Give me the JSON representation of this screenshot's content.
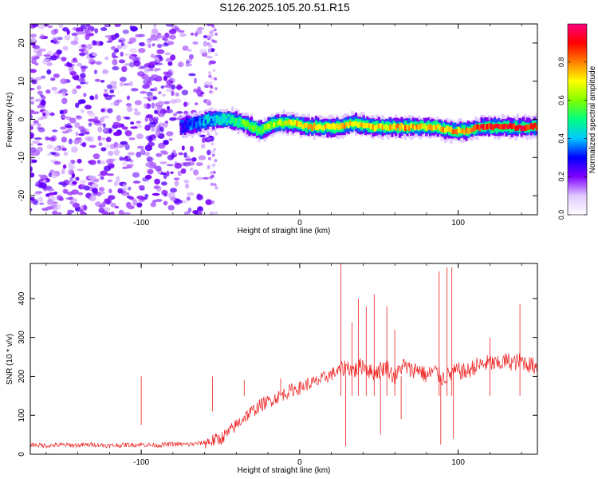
{
  "title": "S126.2025.105.20.51.R15",
  "chart_data": [
    {
      "type": "heatmap",
      "xlabel": "Height of straight line (km)",
      "ylabel": "Frequency (Hz)",
      "xlim": [
        -170,
        150
      ],
      "ylim": [
        -25,
        25
      ],
      "xticks": [
        -100,
        0,
        100
      ],
      "yticks": [
        -20,
        -10,
        0,
        10,
        20
      ],
      "colorbar": {
        "label": "Normalized spectral amplitude",
        "range": [
          0,
          1
        ],
        "ticks": [
          "0.0",
          "0.2",
          "0.4",
          "0.6",
          "0.8"
        ],
        "colormap": [
          "#ffffff",
          "#e0c8ff",
          "#8000ff",
          "#0000ff",
          "#00c8ff",
          "#00ff80",
          "#80ff00",
          "#ffff00",
          "#ff8000",
          "#ff0000",
          "#ff0080"
        ]
      },
      "ridge": {
        "x": [
          -75,
          -65,
          -55,
          -45,
          -35,
          -25,
          -15,
          -5,
          5,
          15,
          25,
          35,
          45,
          55,
          65,
          75,
          85,
          95,
          105,
          115,
          125,
          135,
          150
        ],
        "y": [
          -2,
          -1,
          0,
          0,
          -1,
          -3,
          -1,
          -1,
          -2,
          -2,
          -2,
          -1,
          -2,
          -2,
          -2,
          -2,
          -2,
          -3,
          -3,
          -2,
          -2,
          -2,
          -2
        ],
        "amplitude": [
          0.3,
          0.35,
          0.4,
          0.45,
          0.55,
          0.6,
          0.62,
          0.7,
          0.75,
          0.72,
          0.78,
          0.7,
          0.75,
          0.72,
          0.78,
          0.74,
          0.72,
          0.76,
          0.8,
          0.9,
          0.9,
          0.9,
          0.9
        ]
      },
      "noise_region_x": [
        -170,
        -55
      ]
    },
    {
      "type": "line",
      "xlabel": "Height of straight line (km)",
      "ylabel": "SNR (10 * v/v)",
      "xlim": [
        -170,
        150
      ],
      "ylim": [
        0,
        490
      ],
      "xticks": [
        -100,
        0,
        100
      ],
      "yticks": [
        0,
        100,
        200,
        300,
        400
      ],
      "series": [
        {
          "color": "#ee2222",
          "x": [
            -170,
            -160,
            -150,
            -140,
            -130,
            -120,
            -110,
            -100,
            -90,
            -80,
            -70,
            -60,
            -50,
            -45,
            -40,
            -35,
            -30,
            -25,
            -20,
            -15,
            -10,
            -5,
            0,
            5,
            10,
            15,
            20,
            25,
            30,
            35,
            40,
            45,
            50,
            55,
            60,
            65,
            70,
            75,
            80,
            85,
            90,
            95,
            100,
            105,
            110,
            115,
            120,
            125,
            130,
            135,
            140,
            145,
            150
          ],
          "y": [
            25,
            22,
            24,
            23,
            25,
            22,
            24,
            25,
            23,
            26,
            25,
            30,
            40,
            55,
            75,
            95,
            110,
            125,
            135,
            145,
            155,
            165,
            170,
            180,
            185,
            195,
            205,
            215,
            225,
            215,
            230,
            210,
            215,
            225,
            195,
            230,
            215,
            220,
            200,
            215,
            195,
            205,
            215,
            210,
            225,
            230,
            235,
            230,
            240,
            235,
            240,
            230,
            225
          ]
        }
      ],
      "spikes": [
        {
          "x": -100,
          "y": 75
        },
        {
          "x": -55,
          "y": 110
        },
        {
          "x": -35,
          "y": 190
        },
        {
          "x": -12,
          "y": 195
        },
        {
          "x": 26,
          "y": 490
        },
        {
          "x": 29,
          "y": 20
        },
        {
          "x": 33,
          "y": 340
        },
        {
          "x": 37,
          "y": 400
        },
        {
          "x": 42,
          "y": 380
        },
        {
          "x": 47,
          "y": 410
        },
        {
          "x": 51,
          "y": 50
        },
        {
          "x": 55,
          "y": 380
        },
        {
          "x": 60,
          "y": 320
        },
        {
          "x": 64,
          "y": 90
        },
        {
          "x": 88,
          "y": 470
        },
        {
          "x": 89,
          "y": 25
        },
        {
          "x": 93,
          "y": 480
        },
        {
          "x": 96,
          "y": 480
        },
        {
          "x": 97,
          "y": 40
        },
        {
          "x": 120,
          "y": 300
        },
        {
          "x": 139,
          "y": 385
        }
      ]
    }
  ]
}
